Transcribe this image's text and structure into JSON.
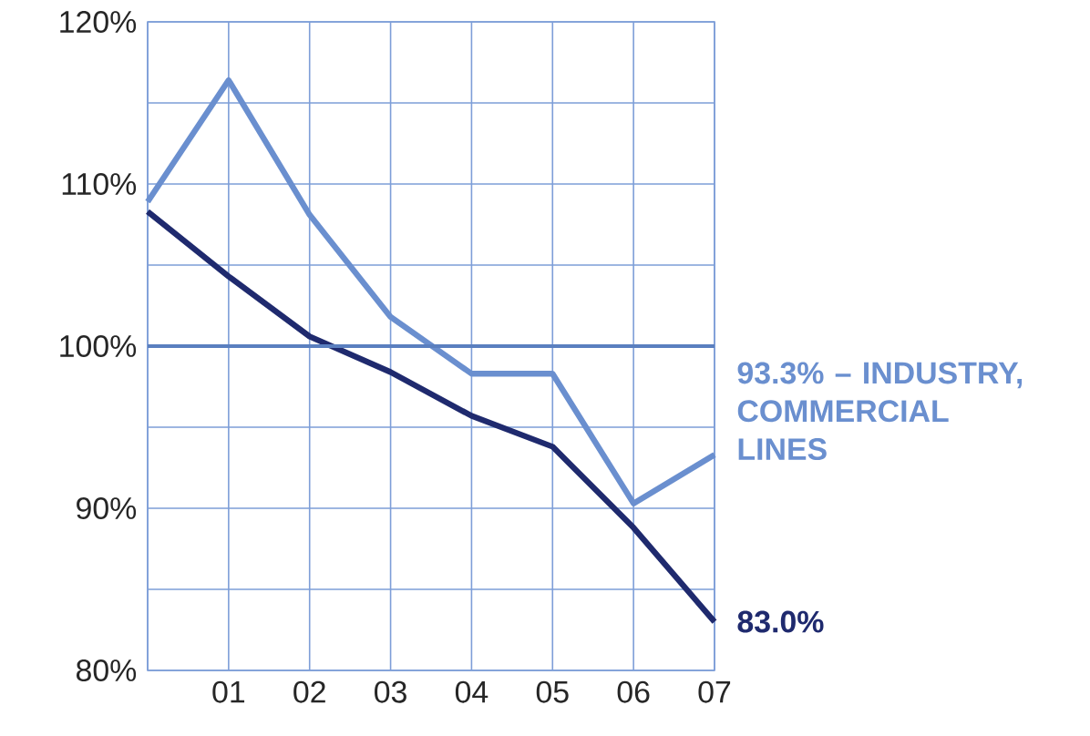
{
  "chart_data": {
    "type": "line",
    "categories": [
      null,
      "01",
      "02",
      "03",
      "04",
      "05",
      "06",
      "07"
    ],
    "series": [
      {
        "name": "93.3% – INDUSTRY, COMMERCIAL LINES",
        "color": "#6a8fcf",
        "values": [
          108.9,
          116.4,
          108.1,
          101.8,
          98.3,
          98.3,
          90.3,
          93.3
        ]
      },
      {
        "name": "83.0%",
        "color": "#1f2a6e",
        "values": [
          108.3,
          104.3,
          100.6,
          98.4,
          95.7,
          93.8,
          88.8,
          83.0
        ]
      }
    ],
    "ylim": [
      80,
      120
    ],
    "yticks": [
      {
        "value": 80,
        "label": "80%"
      },
      {
        "value": 85,
        "label": null
      },
      {
        "value": 90,
        "label": "90%"
      },
      {
        "value": 95,
        "label": null
      },
      {
        "value": 100,
        "label": "100%"
      },
      {
        "value": 105,
        "label": null
      },
      {
        "value": 110,
        "label": "110%"
      },
      {
        "value": 115,
        "label": null
      },
      {
        "value": 120,
        "label": "120%"
      }
    ],
    "ref_lines": [
      {
        "axis": "y",
        "value": 100,
        "color": "#5a7fbf"
      }
    ],
    "grid": true,
    "marker": "none",
    "line_style": "solid"
  }
}
